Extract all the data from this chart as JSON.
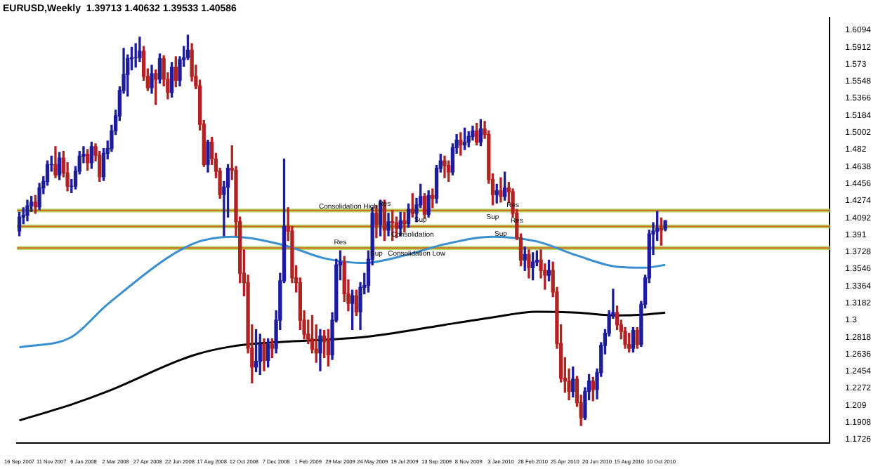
{
  "chart_data": {
    "type": "candlestick",
    "title": "EURUSD,Weekly  1.39713 1.40632 1.39533 1.40586",
    "x": [
      "2007-09-16",
      "2007-09-23",
      "2007-09-30",
      "2007-10-07",
      "2007-10-14",
      "2007-10-21",
      "2007-10-28",
      "2007-11-04",
      "2007-11-11",
      "2007-11-18",
      "2007-11-25",
      "2007-12-02",
      "2007-12-09",
      "2007-12-16",
      "2007-12-23",
      "2007-12-30",
      "2008-01-06",
      "2008-01-13",
      "2008-01-20",
      "2008-01-27",
      "2008-02-03",
      "2008-02-10",
      "2008-02-17",
      "2008-02-24",
      "2008-03-02",
      "2008-03-09",
      "2008-03-16",
      "2008-03-23",
      "2008-03-30",
      "2008-04-06",
      "2008-04-13",
      "2008-04-20",
      "2008-04-27",
      "2008-05-04",
      "2008-05-11",
      "2008-05-18",
      "2008-05-25",
      "2008-06-01",
      "2008-06-08",
      "2008-06-15",
      "2008-06-22",
      "2008-06-29",
      "2008-07-06",
      "2008-07-13",
      "2008-07-20",
      "2008-07-27",
      "2008-08-03",
      "2008-08-10",
      "2008-08-17",
      "2008-08-24",
      "2008-08-31",
      "2008-09-07",
      "2008-09-14",
      "2008-09-21",
      "2008-09-28",
      "2008-10-05",
      "2008-10-12",
      "2008-10-19",
      "2008-10-26",
      "2008-11-02",
      "2008-11-09",
      "2008-11-16",
      "2008-11-23",
      "2008-11-30",
      "2008-12-07",
      "2008-12-14",
      "2008-12-21",
      "2008-12-28",
      "2009-01-04",
      "2009-01-11",
      "2009-01-18",
      "2009-01-25",
      "2009-02-01",
      "2009-02-08",
      "2009-02-15",
      "2009-02-22",
      "2009-03-01",
      "2009-03-08",
      "2009-03-15",
      "2009-03-22",
      "2009-03-29",
      "2009-04-05",
      "2009-04-12",
      "2009-04-19",
      "2009-04-26",
      "2009-05-03",
      "2009-05-10",
      "2009-05-17",
      "2009-05-24",
      "2009-05-31",
      "2009-06-07",
      "2009-06-14",
      "2009-06-21",
      "2009-06-28",
      "2009-07-05",
      "2009-07-12",
      "2009-07-19",
      "2009-07-26",
      "2009-08-02",
      "2009-08-09",
      "2009-08-16",
      "2009-08-23",
      "2009-08-30",
      "2009-09-06",
      "2009-09-13",
      "2009-09-20",
      "2009-09-27",
      "2009-10-04",
      "2009-10-11",
      "2009-10-18",
      "2009-10-25",
      "2009-11-01",
      "2009-11-08",
      "2009-11-15",
      "2009-11-22",
      "2009-11-29",
      "2009-12-06",
      "2009-12-13",
      "2009-12-20",
      "2009-12-27",
      "2010-01-03",
      "2010-01-10",
      "2010-01-17",
      "2010-01-24",
      "2010-01-31",
      "2010-02-07",
      "2010-02-14",
      "2010-02-21",
      "2010-02-28",
      "2010-03-07",
      "2010-03-14",
      "2010-03-21",
      "2010-03-28",
      "2010-04-04",
      "2010-04-11",
      "2010-04-18",
      "2010-04-25",
      "2010-05-02",
      "2010-05-09",
      "2010-05-16",
      "2010-05-23",
      "2010-05-30",
      "2010-06-06",
      "2010-06-13",
      "2010-06-20",
      "2010-06-27",
      "2010-07-04",
      "2010-07-11",
      "2010-07-18",
      "2010-07-25",
      "2010-08-01",
      "2010-08-08",
      "2010-08-15",
      "2010-08-22",
      "2010-08-29",
      "2010-09-05",
      "2010-09-12",
      "2010-09-19",
      "2010-09-26",
      "2010-10-03",
      "2010-10-10",
      "2010-10-17"
    ],
    "ohlc": [
      [
        1.395,
        1.415,
        1.39,
        1.41
      ],
      [
        1.41,
        1.42,
        1.403,
        1.412
      ],
      [
        1.412,
        1.428,
        1.406,
        1.422
      ],
      [
        1.422,
        1.432,
        1.416,
        1.426
      ],
      [
        1.426,
        1.433,
        1.414,
        1.421
      ],
      [
        1.421,
        1.446,
        1.418,
        1.441
      ],
      [
        1.441,
        1.453,
        1.435,
        1.448
      ],
      [
        1.448,
        1.47,
        1.444,
        1.466
      ],
      [
        1.466,
        1.475,
        1.459,
        1.466
      ],
      [
        1.466,
        1.485,
        1.452,
        1.455
      ],
      [
        1.455,
        1.479,
        1.45,
        1.473
      ],
      [
        1.473,
        1.48,
        1.453,
        1.457
      ],
      [
        1.457,
        1.468,
        1.438,
        1.443
      ],
      [
        1.443,
        1.45,
        1.436,
        1.443
      ],
      [
        1.443,
        1.464,
        1.44,
        1.459
      ],
      [
        1.459,
        1.48,
        1.456,
        1.475
      ],
      [
        1.475,
        1.485,
        1.468,
        1.477
      ],
      [
        1.477,
        1.482,
        1.46,
        1.468
      ],
      [
        1.468,
        1.49,
        1.462,
        1.485
      ],
      [
        1.485,
        1.488,
        1.47,
        1.476
      ],
      [
        1.476,
        1.48,
        1.448,
        1.453
      ],
      [
        1.453,
        1.483,
        1.449,
        1.478
      ],
      [
        1.478,
        1.491,
        1.472,
        1.483
      ],
      [
        1.483,
        1.508,
        1.48,
        1.502
      ],
      [
        1.502,
        1.524,
        1.498,
        1.518
      ],
      [
        1.518,
        1.549,
        1.513,
        1.545
      ],
      [
        1.545,
        1.59,
        1.542,
        1.562
      ],
      [
        1.562,
        1.583,
        1.539,
        1.579
      ],
      [
        1.579,
        1.591,
        1.567,
        1.58
      ],
      [
        1.58,
        1.595,
        1.57,
        1.58
      ],
      [
        1.58,
        1.602,
        1.576,
        1.587
      ],
      [
        1.587,
        1.592,
        1.556,
        1.56
      ],
      [
        1.56,
        1.568,
        1.545,
        1.548
      ],
      [
        1.548,
        1.572,
        1.542,
        1.563
      ],
      [
        1.563,
        1.567,
        1.53,
        1.557
      ],
      [
        1.557,
        1.584,
        1.553,
        1.579
      ],
      [
        1.579,
        1.582,
        1.55,
        1.557
      ],
      [
        1.557,
        1.564,
        1.536,
        1.543
      ],
      [
        1.543,
        1.575,
        1.538,
        1.57
      ],
      [
        1.57,
        1.581,
        1.549,
        1.556
      ],
      [
        1.556,
        1.581,
        1.55,
        1.578
      ],
      [
        1.578,
        1.592,
        1.571,
        1.58
      ],
      [
        1.58,
        1.604,
        1.578,
        1.588
      ],
      [
        1.588,
        1.595,
        1.555,
        1.56
      ],
      [
        1.56,
        1.572,
        1.547,
        1.55
      ],
      [
        1.55,
        1.556,
        1.503,
        1.509
      ],
      [
        1.509,
        1.513,
        1.464,
        1.466
      ],
      [
        1.466,
        1.492,
        1.458,
        1.49
      ],
      [
        1.49,
        1.495,
        1.466,
        1.472
      ],
      [
        1.472,
        1.478,
        1.452,
        1.459
      ],
      [
        1.459,
        1.462,
        1.43,
        1.434
      ],
      [
        1.434,
        1.448,
        1.39,
        1.442
      ],
      [
        1.442,
        1.466,
        1.41,
        1.462
      ],
      [
        1.462,
        1.486,
        1.45,
        1.46
      ],
      [
        1.46,
        1.464,
        1.39,
        1.405
      ],
      [
        1.405,
        1.41,
        1.34,
        1.35
      ],
      [
        1.35,
        1.375,
        1.326,
        1.34
      ],
      [
        1.34,
        1.348,
        1.265,
        1.27
      ],
      [
        1.27,
        1.295,
        1.233,
        1.25
      ],
      [
        1.25,
        1.29,
        1.245,
        1.256
      ],
      [
        1.256,
        1.285,
        1.242,
        1.274
      ],
      [
        1.274,
        1.28,
        1.246,
        1.257
      ],
      [
        1.257,
        1.28,
        1.25,
        1.274
      ],
      [
        1.274,
        1.28,
        1.26,
        1.27
      ],
      [
        1.27,
        1.31,
        1.265,
        1.3
      ],
      [
        1.3,
        1.35,
        1.29,
        1.342
      ],
      [
        1.342,
        1.472,
        1.34,
        1.4
      ],
      [
        1.4,
        1.42,
        1.385,
        1.395
      ],
      [
        1.395,
        1.4,
        1.34,
        1.345
      ],
      [
        1.345,
        1.358,
        1.33,
        1.34
      ],
      [
        1.34,
        1.345,
        1.29,
        1.3
      ],
      [
        1.3,
        1.31,
        1.28,
        1.285
      ],
      [
        1.285,
        1.3,
        1.275,
        1.28
      ],
      [
        1.28,
        1.305,
        1.265,
        1.269
      ],
      [
        1.269,
        1.295,
        1.255,
        1.265
      ],
      [
        1.265,
        1.29,
        1.246,
        1.283
      ],
      [
        1.283,
        1.289,
        1.26,
        1.277
      ],
      [
        1.277,
        1.29,
        1.251,
        1.263
      ],
      [
        1.263,
        1.308,
        1.258,
        1.3
      ],
      [
        1.3,
        1.365,
        1.298,
        1.359
      ],
      [
        1.359,
        1.374,
        1.343,
        1.362
      ],
      [
        1.362,
        1.368,
        1.32,
        1.328
      ],
      [
        1.328,
        1.343,
        1.31,
        1.318
      ],
      [
        1.318,
        1.332,
        1.29,
        1.326
      ],
      [
        1.326,
        1.332,
        1.305,
        1.309
      ],
      [
        1.309,
        1.34,
        1.29,
        1.335
      ],
      [
        1.335,
        1.35,
        1.328,
        1.337
      ],
      [
        1.337,
        1.374,
        1.33,
        1.365
      ],
      [
        1.365,
        1.42,
        1.359,
        1.414
      ],
      [
        1.414,
        1.422,
        1.388,
        1.402
      ],
      [
        1.402,
        1.428,
        1.39,
        1.425
      ],
      [
        1.425,
        1.428,
        1.385,
        1.396
      ],
      [
        1.396,
        1.414,
        1.39,
        1.405
      ],
      [
        1.405,
        1.417,
        1.385,
        1.404
      ],
      [
        1.404,
        1.41,
        1.388,
        1.398
      ],
      [
        1.398,
        1.415,
        1.39,
        1.406
      ],
      [
        1.406,
        1.415,
        1.394,
        1.403
      ],
      [
        1.403,
        1.424,
        1.399,
        1.418
      ],
      [
        1.418,
        1.435,
        1.41,
        1.414
      ],
      [
        1.414,
        1.43,
        1.405,
        1.423
      ],
      [
        1.423,
        1.445,
        1.42,
        1.432
      ],
      [
        1.432,
        1.435,
        1.409,
        1.413
      ],
      [
        1.413,
        1.438,
        1.41,
        1.433
      ],
      [
        1.433,
        1.44,
        1.42,
        1.43
      ],
      [
        1.43,
        1.465,
        1.425,
        1.462
      ],
      [
        1.462,
        1.477,
        1.458,
        1.47
      ],
      [
        1.47,
        1.475,
        1.452,
        1.465
      ],
      [
        1.465,
        1.47,
        1.448,
        1.458
      ],
      [
        1.458,
        1.488,
        1.455,
        1.484
      ],
      [
        1.484,
        1.498,
        1.478,
        1.492
      ],
      [
        1.492,
        1.5,
        1.476,
        1.487
      ],
      [
        1.487,
        1.505,
        1.482,
        1.49
      ],
      [
        1.49,
        1.501,
        1.485,
        1.496
      ],
      [
        1.496,
        1.507,
        1.492,
        1.502
      ],
      [
        1.502,
        1.51,
        1.487,
        1.49
      ],
      [
        1.49,
        1.514,
        1.486,
        1.504
      ],
      [
        1.504,
        1.512,
        1.494,
        1.498
      ],
      [
        1.498,
        1.502,
        1.446,
        1.45
      ],
      [
        1.45,
        1.456,
        1.423,
        1.434
      ],
      [
        1.434,
        1.445,
        1.425,
        1.438
      ],
      [
        1.438,
        1.452,
        1.426,
        1.432
      ],
      [
        1.432,
        1.458,
        1.428,
        1.441
      ],
      [
        1.441,
        1.447,
        1.425,
        1.437
      ],
      [
        1.437,
        1.44,
        1.41,
        1.414
      ],
      [
        1.414,
        1.418,
        1.386,
        1.388
      ],
      [
        1.388,
        1.392,
        1.358,
        1.364
      ],
      [
        1.364,
        1.378,
        1.353,
        1.37
      ],
      [
        1.37,
        1.375,
        1.345,
        1.356
      ],
      [
        1.356,
        1.372,
        1.343,
        1.362
      ],
      [
        1.362,
        1.374,
        1.358,
        1.364
      ],
      [
        1.364,
        1.375,
        1.345,
        1.353
      ],
      [
        1.353,
        1.36,
        1.333,
        1.348
      ],
      [
        1.348,
        1.364,
        1.342,
        1.353
      ],
      [
        1.353,
        1.362,
        1.325,
        1.33
      ],
      [
        1.33,
        1.335,
        1.27,
        1.275
      ],
      [
        1.275,
        1.295,
        1.234,
        1.238
      ],
      [
        1.238,
        1.26,
        1.223,
        1.235
      ],
      [
        1.235,
        1.248,
        1.215,
        1.224
      ],
      [
        1.224,
        1.25,
        1.218,
        1.237
      ],
      [
        1.237,
        1.24,
        1.208,
        1.212
      ],
      [
        1.212,
        1.22,
        1.1876,
        1.196
      ],
      [
        1.196,
        1.228,
        1.194,
        1.224
      ],
      [
        1.224,
        1.242,
        1.215,
        1.235
      ],
      [
        1.235,
        1.239,
        1.214,
        1.226
      ],
      [
        1.226,
        1.248,
        1.216,
        1.244
      ],
      [
        1.244,
        1.276,
        1.24,
        1.273
      ],
      [
        1.273,
        1.29,
        1.264,
        1.286
      ],
      [
        1.286,
        1.31,
        1.283,
        1.305
      ],
      [
        1.305,
        1.333,
        1.302,
        1.308
      ],
      [
        1.308,
        1.315,
        1.29,
        1.295
      ],
      [
        1.295,
        1.3,
        1.28,
        1.288
      ],
      [
        1.288,
        1.292,
        1.27,
        1.274
      ],
      [
        1.274,
        1.286,
        1.266,
        1.27
      ],
      [
        1.27,
        1.292,
        1.266,
        1.289
      ],
      [
        1.289,
        1.292,
        1.27,
        1.274
      ],
      [
        1.274,
        1.32,
        1.272,
        1.317
      ],
      [
        1.317,
        1.348,
        1.313,
        1.345
      ],
      [
        1.345,
        1.396,
        1.34,
        1.392
      ],
      [
        1.392,
        1.404,
        1.37,
        1.395
      ],
      [
        1.395,
        1.416,
        1.385,
        1.398
      ],
      [
        1.398,
        1.409,
        1.38,
        1.396
      ],
      [
        1.3971,
        1.4063,
        1.3953,
        1.4059
      ]
    ],
    "series": [
      {
        "type": "line",
        "color": "#3a8fd0",
        "x": [
          "2007-09-16",
          "2007-12-16",
          "2008-02-17",
          "2008-07-13",
          "2008-09-21",
          "2008-12-21",
          "2009-03-01",
          "2009-05-10",
          "2009-07-19",
          "2009-09-27",
          "2009-12-20",
          "2010-03-07",
          "2010-05-16",
          "2010-07-25",
          "2010-09-12",
          "2010-10-17"
        ],
        "values": [
          1.271,
          1.282,
          1.317,
          1.381,
          1.389,
          1.38,
          1.366,
          1.361,
          1.369,
          1.381,
          1.389,
          1.384,
          1.369,
          1.357,
          1.356,
          1.359
        ]
      },
      {
        "type": "line",
        "color": "#000000",
        "x": [
          "2007-09-16",
          "2007-12-16",
          "2008-02-17",
          "2008-07-13",
          "2008-09-21",
          "2008-12-21",
          "2009-03-01",
          "2009-05-10",
          "2009-07-19",
          "2009-09-27",
          "2009-12-20",
          "2010-03-07",
          "2010-05-16",
          "2010-07-25",
          "2010-09-12",
          "2010-10-17"
        ],
        "values": [
          1.193,
          1.21,
          1.224,
          1.262,
          1.272,
          1.277,
          1.279,
          1.282,
          1.288,
          1.295,
          1.303,
          1.309,
          1.308,
          1.305,
          1.306,
          1.308
        ]
      }
    ],
    "xlim": [
      "2007-09-12",
      "2011-07-31"
    ],
    "xticks": [
      {
        "value": "2007-09-16",
        "label": "16 Sep 2007"
      },
      {
        "value": "2007-11-11",
        "label": "11 Nov 2007"
      },
      {
        "value": "2008-01-06",
        "label": "6 Jan 2008"
      },
      {
        "value": "2008-03-02",
        "label": "2 Mar 2008"
      },
      {
        "value": "2008-04-27",
        "label": "27 Apr 2008"
      },
      {
        "value": "2008-06-22",
        "label": "22 Jun 2008"
      },
      {
        "value": "2008-08-17",
        "label": "17 Aug 2008"
      },
      {
        "value": "2008-10-12",
        "label": "12 Oct 2008"
      },
      {
        "value": "2008-12-07",
        "label": "7 Dec 2008"
      },
      {
        "value": "2009-02-01",
        "label": "1 Feb 2009"
      },
      {
        "value": "2009-03-29",
        "label": "29 Mar 2009"
      },
      {
        "value": "2009-05-24",
        "label": "24 May 2009"
      },
      {
        "value": "2009-07-19",
        "label": "19 Jul 2009"
      },
      {
        "value": "2009-09-13",
        "label": "13 Sep 2009"
      },
      {
        "value": "2009-11-08",
        "label": "8 Nov 2009"
      },
      {
        "value": "2010-01-03",
        "label": "3 Jan 2010"
      },
      {
        "value": "2010-02-28",
        "label": "28 Feb 2010"
      },
      {
        "value": "2010-04-25",
        "label": "25 Apr 2010"
      },
      {
        "value": "2010-06-20",
        "label": "20 Jun 2010"
      },
      {
        "value": "2010-08-15",
        "label": "15 Aug 2010"
      },
      {
        "value": "2010-10-10",
        "label": "10 Oct 2010"
      }
    ],
    "ylim": [
      1.169,
      1.623
    ],
    "yticks": [
      1.6094,
      1.5912,
      1.573,
      1.5548,
      1.5366,
      1.5184,
      1.5002,
      1.482,
      1.4638,
      1.4456,
      1.4274,
      1.4092,
      1.391,
      1.3728,
      1.3546,
      1.3364,
      1.3182,
      1.3,
      1.2818,
      1.2636,
      1.2454,
      1.2272,
      1.209,
      1.1908,
      1.1726
    ],
    "ref_lines": [
      {
        "axis": "y",
        "value": 1.417,
        "color": "#d2691e"
      },
      {
        "axis": "y",
        "value": 1.4,
        "color": "#d2691e"
      },
      {
        "axis": "y",
        "value": 1.377,
        "color": "#d2691e"
      }
    ],
    "bands": [
      {
        "axis": "y",
        "from": 1.415,
        "to": 1.419,
        "color": "#b5d96a"
      },
      {
        "axis": "y",
        "from": 1.398,
        "to": 1.402,
        "color": "#b5d96a"
      },
      {
        "axis": "y",
        "from": 1.375,
        "to": 1.379,
        "color": "#b5d96a"
      }
    ],
    "annotations": [
      {
        "text": "Consolidation High",
        "x": "2009-04-12",
        "y": 1.421
      },
      {
        "text": "Res",
        "x": "2009-06-14",
        "y": 1.424
      },
      {
        "text": "Sup",
        "x": "2009-08-16",
        "y": 1.407
      },
      {
        "text": "Consolidation",
        "x": "2009-08-02",
        "y": 1.391
      },
      {
        "text": "Res",
        "x": "2009-03-29",
        "y": 1.383
      },
      {
        "text": "Sup",
        "x": "2009-05-31",
        "y": 1.371
      },
      {
        "text": "Consolidation Low",
        "x": "2009-08-09",
        "y": 1.371
      },
      {
        "text": "Sup",
        "x": "2009-12-20",
        "y": 1.41
      },
      {
        "text": "Res",
        "x": "2010-01-24",
        "y": 1.423
      },
      {
        "text": "Res",
        "x": "2010-01-31",
        "y": 1.406
      },
      {
        "text": "Sup",
        "x": "2010-01-03",
        "y": 1.392
      }
    ]
  }
}
